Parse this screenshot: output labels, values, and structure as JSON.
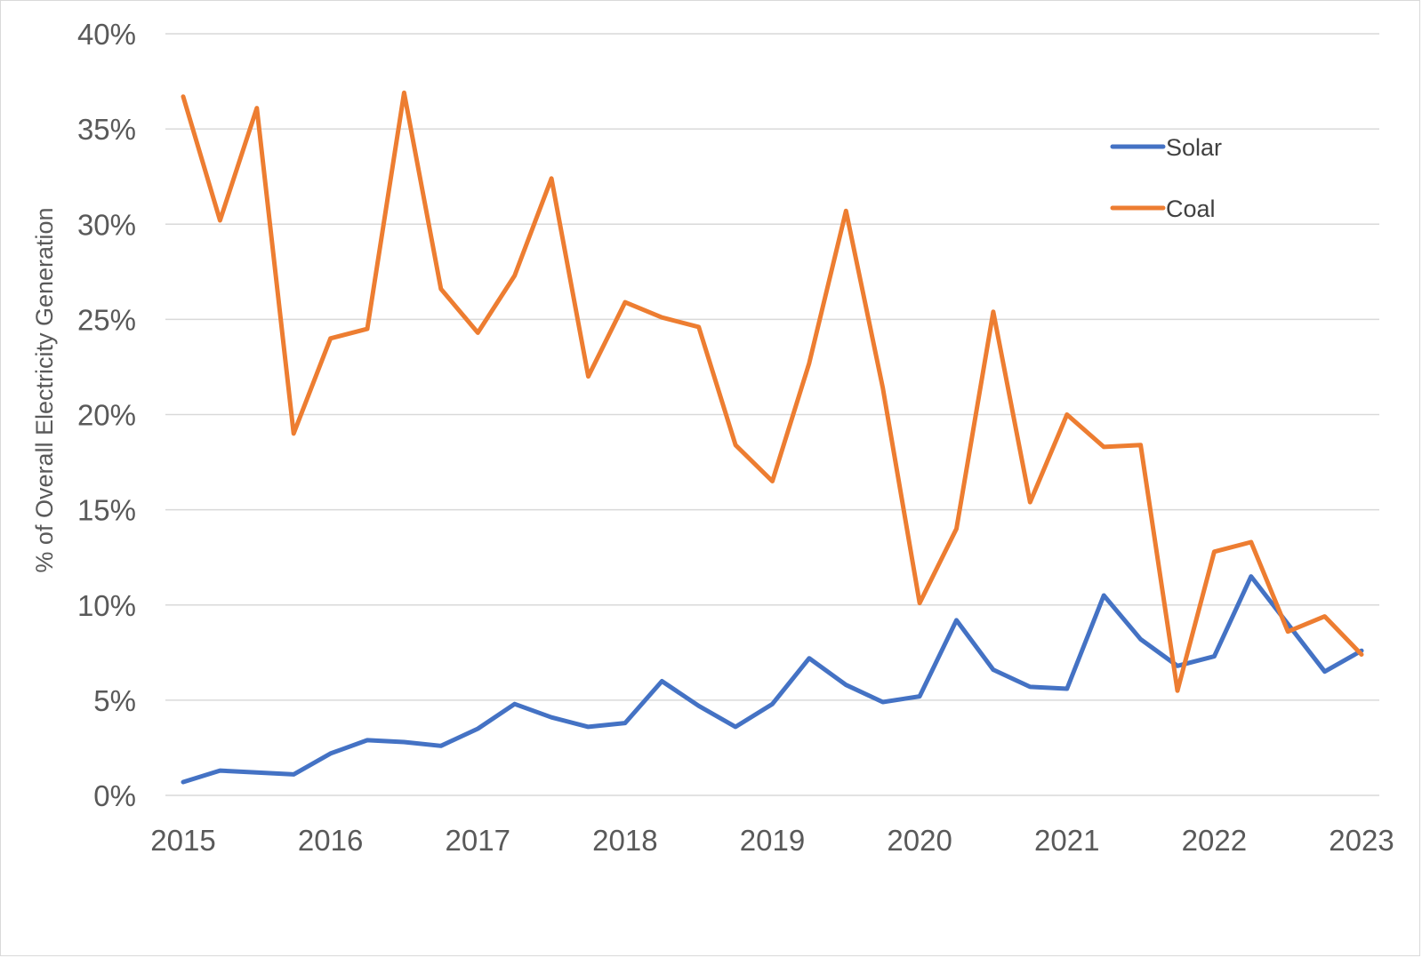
{
  "chart_data": {
    "type": "line",
    "title": "",
    "xlabel": "",
    "ylabel": "% of Overall Electricity Generation",
    "ylim": [
      0,
      40
    ],
    "yticks": [
      0,
      5,
      10,
      15,
      20,
      25,
      30,
      35,
      40
    ],
    "ytick_labels": [
      "0%",
      "5%",
      "10%",
      "15%",
      "20%",
      "25%",
      "30%",
      "35%",
      "40%"
    ],
    "xlim": [
      2015,
      2023
    ],
    "xticks": [
      2015,
      2016,
      2017,
      2018,
      2019,
      2020,
      2021,
      2022,
      2023
    ],
    "xtick_labels": [
      "2015",
      "2016",
      "2017",
      "2018",
      "2019",
      "2020",
      "2021",
      "2022",
      "2023"
    ],
    "grid": true,
    "legend_position": "top-right",
    "x": [
      2015.0,
      2015.25,
      2015.5,
      2015.75,
      2016.0,
      2016.25,
      2016.5,
      2016.75,
      2017.0,
      2017.25,
      2017.5,
      2017.75,
      2018.0,
      2018.25,
      2018.5,
      2018.75,
      2019.0,
      2019.25,
      2019.5,
      2019.75,
      2020.0,
      2020.25,
      2020.5,
      2020.75,
      2021.0,
      2021.25,
      2021.5,
      2021.75,
      2022.0,
      2022.25,
      2022.5,
      2022.75,
      2023.0
    ],
    "series": [
      {
        "name": "Solar",
        "color": "#4472C4",
        "values": [
          0.7,
          1.3,
          1.2,
          1.1,
          2.2,
          2.9,
          2.8,
          2.6,
          3.5,
          4.8,
          4.1,
          3.6,
          3.8,
          6.0,
          4.7,
          3.6,
          4.8,
          7.2,
          5.8,
          4.9,
          5.2,
          9.2,
          6.6,
          5.7,
          5.6,
          10.5,
          8.2,
          6.8,
          7.3,
          11.5,
          9.0,
          6.5,
          7.6
        ]
      },
      {
        "name": "Coal",
        "color": "#ED7D31",
        "values": [
          36.7,
          30.2,
          36.1,
          19.0,
          24.0,
          24.5,
          36.9,
          26.6,
          24.3,
          27.3,
          32.4,
          22.0,
          25.9,
          25.1,
          24.6,
          18.4,
          16.5,
          22.7,
          30.7,
          21.4,
          10.1,
          14.0,
          25.4,
          15.4,
          20.0,
          18.3,
          18.4,
          5.5,
          12.8,
          13.3,
          8.6,
          9.4,
          7.4
        ]
      }
    ]
  }
}
